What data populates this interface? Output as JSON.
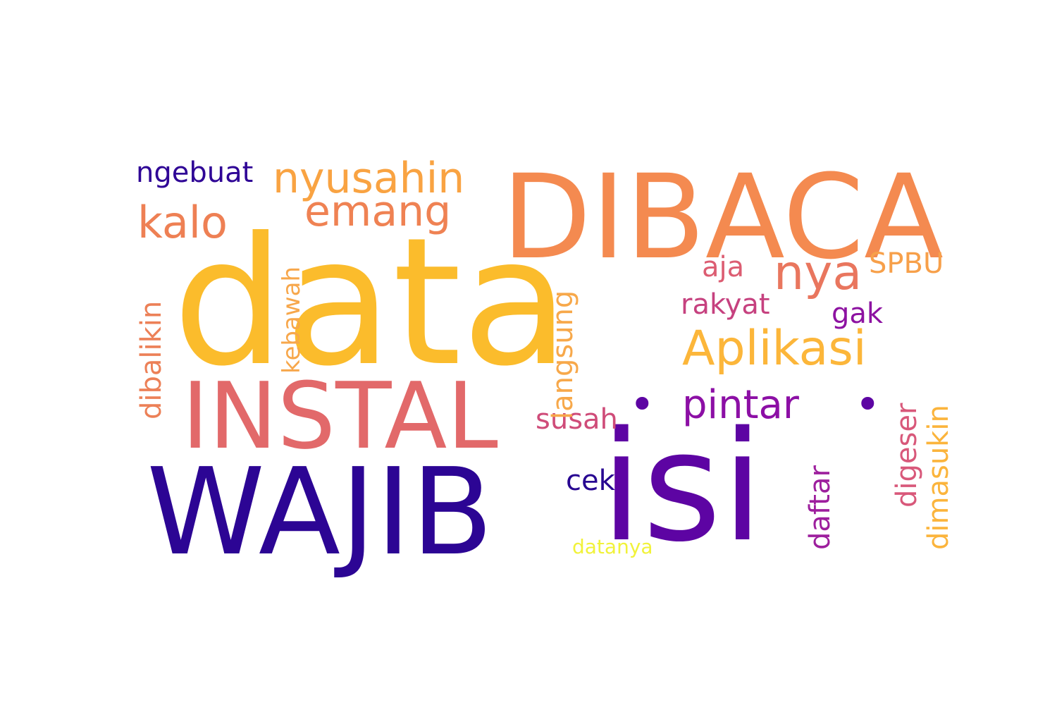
{
  "words": [
    {
      "text": "data",
      "color": "#fbbc2c"
    },
    {
      "text": "isi",
      "color": "#5d04a3"
    },
    {
      "text": "WAJIB",
      "color": "#2c0594"
    },
    {
      "text": "DIBACA",
      "color": "#f48a50"
    },
    {
      "text": "INSTAL",
      "color": "#e2696a"
    },
    {
      "text": "Aplikasi",
      "color": "#fcb63a"
    },
    {
      "text": "nya",
      "color": "#e9765e"
    },
    {
      "text": "nyusahin",
      "color": "#f9a342"
    },
    {
      "text": "emang",
      "color": "#ef8253"
    },
    {
      "text": "kalo",
      "color": "#ee8054"
    },
    {
      "text": "pintar",
      "color": "#8c0fa5"
    },
    {
      "text": "ngebuat",
      "color": "#2f0596"
    },
    {
      "text": "SPBU",
      "color": "#f7a04a"
    },
    {
      "text": "aja",
      "color": "#dc5d72"
    },
    {
      "text": "rakyat",
      "color": "#c6417f"
    },
    {
      "text": "gak",
      "color": "#8d12a1"
    },
    {
      "text": "cek",
      "color": "#270591"
    },
    {
      "text": "susah",
      "color": "#cf4c79"
    },
    {
      "text": "datanya",
      "color": "#f1f23a"
    },
    {
      "text": "dibalikin",
      "color": "#ec8057"
    },
    {
      "text": "kebawah",
      "color": "#f7a74b"
    },
    {
      "text": "langsung",
      "color": "#f7a84a"
    },
    {
      "text": "daftar",
      "color": "#9d1f9d"
    },
    {
      "text": "digeser",
      "color": "#d8587a"
    },
    {
      "text": "dimasukin",
      "color": "#fbb43c"
    },
    {
      "text": "•",
      "color": "#5d04a3"
    },
    {
      "text": "•",
      "color": "#5d04a3"
    }
  ]
}
